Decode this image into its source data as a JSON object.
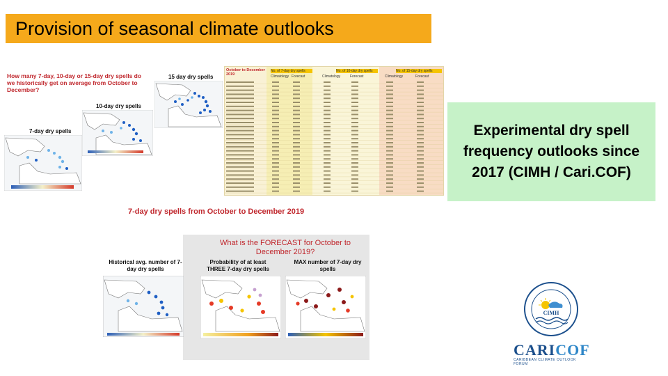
{
  "slide": {
    "title": "Provision of seasonal climate outlooks",
    "side_text": "Experimental dry spell frequency outlooks since 2017 (CIMH / Cari.COF)"
  },
  "top_figure": {
    "question": "How many 7-day, 10-day or 15-day dry spells do we historically get on average from October to December?",
    "label_15": "15 day dry spells",
    "label_10": "10-day dry spells",
    "label_7": "7-day dry spells",
    "table_heading": "October to December 2019",
    "table_col_7": "No. of 7-day dry spells",
    "table_col_10": "No. of 10-day dry spells",
    "table_col_15": "No. of 15-day dry spells",
    "table_sub_climatology": "Climatology",
    "table_sub_forecast": "Forecast",
    "caption": "7-day dry spells from October to December 2019"
  },
  "bottom_figure": {
    "forecast_title": "What is the FORECAST for October to December 2019?",
    "panel_hist": "Historical avg. number of 7-day dry spells",
    "panel_prob": "Probability of at least THREE 7-day dry spells",
    "panel_max": "MAX number of 7-day dry spells"
  },
  "logos": {
    "cimh": "CIMH",
    "caricof_a": "CARI",
    "caricof_b": "COF",
    "caricof_sub": "CARIBBEAN CLIMATE OUTLOOK FORUM"
  },
  "colors": {
    "title_bar": "#f5a91b",
    "side_box": "#c6f2c8",
    "accent_red": "#c0272d"
  }
}
